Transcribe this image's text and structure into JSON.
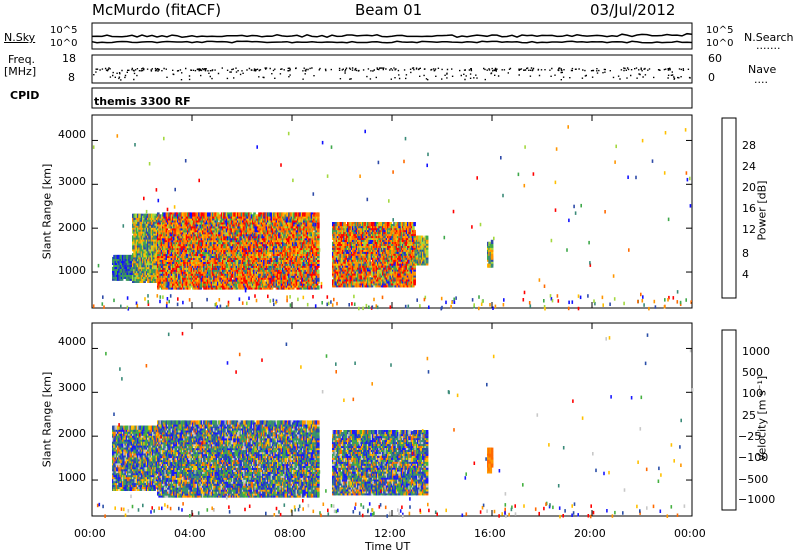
{
  "header": {
    "station": "McMurdo (fitACF)",
    "beam": "Beam 01",
    "date": "03/Jul/2012"
  },
  "strip": {
    "nsky_label": "N.Sky",
    "nsearch_label": "N.Search",
    "nsearch_dots": ".......",
    "nsky_ticks": [
      "10^5",
      "10^0"
    ],
    "nsearch_ticks": [
      "10^5",
      "10^0"
    ],
    "freq_label_1": "Freq.",
    "freq_label_2": "[MHz]",
    "freq_ticks": [
      "18",
      "8"
    ],
    "nave_label": "Nave",
    "nave_dots": "....",
    "nave_ticks": [
      "60",
      "0"
    ],
    "cpid_label": "CPID",
    "cpid_value": "themis 3300 RF"
  },
  "colorbars": {
    "power": {
      "label": "Power [dB]",
      "ticks": [
        "28",
        "24",
        "20",
        "16",
        "12",
        "8",
        "4"
      ],
      "colors": [
        "#ff0000",
        "#ff6a00",
        "#ff9600",
        "#ffc000",
        "#a4d840",
        "#3ea84a",
        "#3a8a78",
        "#2e4aa8",
        "#1010ff"
      ]
    },
    "velocity": {
      "label": "Velocity [m s⁻¹]",
      "ticks": [
        "1000",
        "500",
        "100",
        "25",
        "−25",
        "−100",
        "−500",
        "−1000"
      ],
      "colors": [
        "#1818ff",
        "#2a4ea8",
        "#3a8a78",
        "#44b040",
        "#c8c8c8",
        "#ffc000",
        "#ff9600",
        "#ff6a00",
        "#ff0000"
      ]
    }
  },
  "chart_data": [
    {
      "type": "heatmap",
      "title": "Power",
      "ylabel": "Slant Range [km]",
      "ylim": [
        180,
        4580
      ],
      "yticks": [
        "4000",
        "3000",
        "2000",
        "1000"
      ],
      "xlim": [
        "00:00",
        "24:00"
      ],
      "regions": [
        {
          "t_start": 0.8,
          "t_end": 1.6,
          "r_min": 850,
          "r_max": 1350,
          "level": "low"
        },
        {
          "t_start": 1.6,
          "t_end": 2.6,
          "r_min": 800,
          "r_max": 2300,
          "level": "medium"
        },
        {
          "t_start": 2.6,
          "t_end": 9.0,
          "r_min": 650,
          "r_max": 2350,
          "level": "high"
        },
        {
          "t_start": 9.6,
          "t_end": 12.9,
          "r_min": 700,
          "r_max": 2100,
          "level": "high"
        },
        {
          "t_start": 12.9,
          "t_end": 13.4,
          "r_min": 1200,
          "r_max": 1800,
          "level": "medium"
        },
        {
          "t_start": 15.8,
          "t_end": 16.0,
          "r_min": 1150,
          "r_max": 1700,
          "level": "medium"
        }
      ]
    },
    {
      "type": "heatmap",
      "title": "Velocity",
      "ylabel": "Slant Range [km]",
      "ylim": [
        180,
        4580
      ],
      "yticks": [
        "4000",
        "3000",
        "2000",
        "1000"
      ],
      "xlabel": "Time UT",
      "xlim": [
        "00:00",
        "24:00"
      ],
      "xticks": [
        "00:00",
        "04:00",
        "08:00",
        "12:00",
        "16:00",
        "20:00",
        "00:00"
      ],
      "regions": [
        {
          "t_start": 0.8,
          "t_end": 2.6,
          "r_min": 800,
          "r_max": 2200,
          "level": "mixed"
        },
        {
          "t_start": 2.6,
          "t_end": 9.0,
          "r_min": 650,
          "r_max": 2350,
          "level": "mixed"
        },
        {
          "t_start": 9.6,
          "t_end": 13.4,
          "r_min": 700,
          "r_max": 2100,
          "level": "mixed"
        },
        {
          "t_start": 15.8,
          "t_end": 16.0,
          "r_min": 1200,
          "r_max": 1700,
          "level": "negative"
        }
      ]
    }
  ]
}
